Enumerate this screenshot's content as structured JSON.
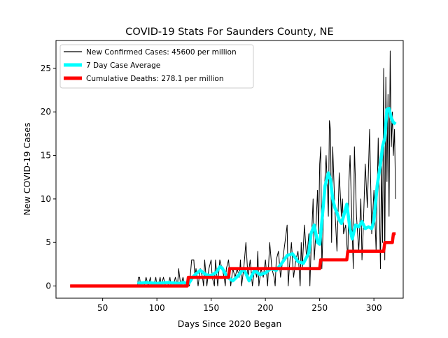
{
  "chart_data": {
    "type": "line",
    "title": "COVID-19 Stats For Saunders County, NE",
    "xlabel": "Days Since 2020 Began",
    "ylabel": "New COVID-19 Cases",
    "xlim": [
      7,
      327
    ],
    "ylim": [
      -1.4,
      28.2
    ],
    "xticks": [
      50,
      100,
      150,
      200,
      250,
      300
    ],
    "yticks": [
      0,
      5,
      10,
      15,
      20,
      25
    ],
    "grid": false,
    "legend_position": "top-left",
    "series": [
      {
        "name": "New Confirmed Cases: 45600 per million",
        "color": "#000000",
        "style": "thin",
        "x": [
          20,
          30,
          40,
          50,
          60,
          70,
          80,
          82,
          83,
          84,
          85,
          86,
          87,
          88,
          90,
          92,
          94,
          95,
          97,
          99,
          100,
          101,
          103,
          104,
          106,
          108,
          109,
          110,
          112,
          113,
          115,
          117,
          119,
          120,
          122,
          124,
          126,
          128,
          130,
          132,
          134,
          135,
          136,
          138,
          140,
          142,
          143,
          144,
          146,
          148,
          150,
          151,
          153,
          154,
          156,
          158,
          160,
          162,
          163,
          164,
          166,
          168,
          170,
          172,
          174,
          176,
          177,
          178,
          180,
          182,
          184,
          186,
          188,
          190,
          192,
          193,
          194,
          196,
          198,
          200,
          202,
          204,
          206,
          208,
          209,
          210,
          212,
          214,
          216,
          218,
          220,
          221,
          222,
          224,
          226,
          228,
          230,
          232,
          233,
          234,
          236,
          238,
          240,
          241,
          242,
          244,
          245,
          246,
          248,
          249,
          250,
          251,
          252,
          254,
          256,
          258,
          259,
          260,
          261,
          262,
          264,
          266,
          268,
          270,
          271,
          272,
          274,
          276,
          277,
          278,
          280,
          281,
          282,
          284,
          286,
          288,
          289,
          290,
          292,
          294,
          296,
          298,
          300,
          302,
          304,
          306,
          307,
          308,
          309,
          310,
          311,
          312,
          313,
          314,
          315,
          316,
          317,
          318,
          319,
          320
        ],
        "y": [
          0,
          0,
          0,
          0,
          0,
          0,
          0,
          0,
          1,
          1,
          0,
          0,
          0,
          0,
          1,
          0,
          1,
          0,
          0,
          1,
          0,
          0,
          1,
          0,
          1,
          0,
          0,
          0,
          1,
          0,
          0,
          1,
          0,
          2,
          0,
          1,
          0,
          0,
          0,
          3,
          3,
          1,
          2,
          0,
          2,
          1,
          0,
          3,
          0,
          2,
          3,
          1,
          0,
          3,
          0,
          3,
          2,
          1,
          0,
          2,
          3,
          0,
          2,
          1,
          2,
          1,
          3,
          0,
          2,
          5,
          1,
          3,
          0,
          2,
          1,
          4,
          0,
          2,
          1,
          3,
          0,
          5,
          2,
          1,
          0,
          3,
          4,
          1,
          3,
          5,
          7,
          0,
          2,
          5,
          1,
          3,
          4,
          0,
          5,
          2,
          7,
          3,
          6,
          0,
          4,
          10,
          3,
          5,
          11,
          6,
          14,
          16,
          2,
          10,
          15,
          8,
          19,
          18,
          5,
          16,
          9,
          4,
          13,
          8,
          10,
          6,
          7,
          3,
          12,
          15,
          6,
          2,
          16,
          8,
          4,
          10,
          3,
          6,
          14,
          9,
          18,
          6,
          11,
          4,
          17,
          2,
          14,
          5,
          25,
          3,
          24,
          12,
          22,
          8,
          27,
          16,
          20,
          15,
          18,
          10
        ]
      },
      {
        "name": "7 Day Case Average",
        "color": "#00ffff",
        "style": "thick",
        "x": [
          82,
          90,
          100,
          110,
          120,
          125,
          128,
          130,
          133,
          136,
          140,
          145,
          150,
          155,
          158,
          160,
          165,
          170,
          175,
          180,
          185,
          190,
          195,
          200,
          205,
          210,
          215,
          220,
          225,
          230,
          235,
          240,
          242,
          245,
          248,
          250,
          252,
          255,
          258,
          260,
          262,
          264,
          266,
          268,
          270,
          272,
          275,
          278,
          280,
          283,
          286,
          289,
          292,
          295,
          298,
          300,
          303,
          306,
          308,
          310,
          312,
          314,
          316,
          318,
          320
        ],
        "y": [
          0.3,
          0.4,
          0.3,
          0.4,
          0.3,
          0.4,
          0.2,
          0.4,
          1,
          1.4,
          1.8,
          1.3,
          1.2,
          1.6,
          2.2,
          2.1,
          1,
          0.6,
          1.2,
          2,
          0.6,
          1.8,
          1.3,
          1.5,
          2,
          1.8,
          2.6,
          3.5,
          3.7,
          2.8,
          2.6,
          3.8,
          6,
          7,
          5,
          4.8,
          7.4,
          11.5,
          13,
          12.2,
          10,
          9,
          8.4,
          7.6,
          7.2,
          8,
          9.4,
          6.5,
          5.4,
          7,
          6.8,
          7.4,
          6.6,
          6.8,
          6.6,
          7.5,
          11.5,
          14,
          16,
          17,
          20.3,
          20.4,
          19.3,
          18.8,
          18.6
        ]
      },
      {
        "name": "Cumulative Deaths: 278.1 per million",
        "color": "#ff0000",
        "style": "thick",
        "x": [
          20,
          128,
          129,
          166,
          167,
          250,
          251,
          275,
          276,
          309,
          310,
          317,
          318,
          320
        ],
        "y": [
          0,
          0,
          1,
          1,
          2,
          2,
          3,
          3,
          4,
          4,
          5,
          5,
          6,
          6
        ]
      }
    ]
  }
}
